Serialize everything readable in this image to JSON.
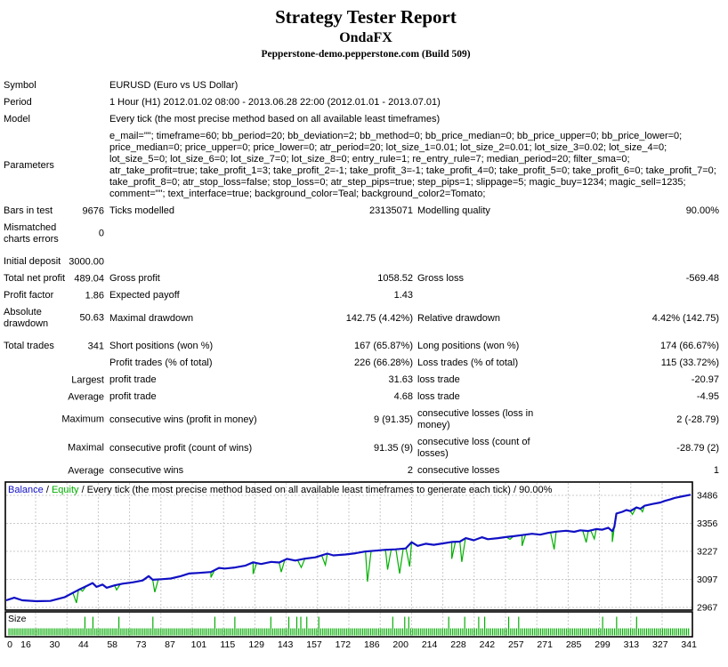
{
  "header": {
    "title": "Strategy Tester Report",
    "expert": "OndaFX",
    "server": "Pepperstone-demo.pepperstone.com (Build 509)"
  },
  "table": {
    "rows": [
      {
        "type": "info",
        "label": "Symbol",
        "value": "EURUSD (Euro vs US Dollar)"
      },
      {
        "type": "info",
        "label": "Period",
        "value": "1 Hour (H1) 2012.01.02 08:00 - 2013.06.28 22:00 (2012.01.01 - 2013.07.01)"
      },
      {
        "type": "info",
        "label": "Model",
        "value": "Every tick (the most precise method based on all available least timeframes)"
      },
      {
        "type": "info",
        "label": "Parameters",
        "value": "e_mail=\"\"; timeframe=60; bb_period=20; bb_deviation=2; bb_method=0; bb_price_median=0; bb_price_upper=0; bb_price_lower=0; price_median=0; price_upper=0; price_lower=0; atr_period=20; lot_size_1=0.01; lot_size_2=0.01; lot_size_3=0.02; lot_size_4=0; lot_size_5=0; lot_size_6=0; lot_size_7=0; lot_size_8=0; entry_rule=1; re_entry_rule=7; median_period=20; filter_sma=0; atr_take_profit=true; take_profit_1=3; take_profit_2=-1; take_profit_3=-1; take_profit_4=0; take_profit_5=0; take_profit_6=0; take_profit_7=0; take_profit_8=0; atr_stop_loss=false; stop_loss=0; atr_step_pips=true; step_pips=1; slippage=5; magic_buy=1234; magic_sell=1235; comment=\"\"; text_interface=true; background_color=Teal; background_color2=Tomato;"
      },
      {
        "type": "stats",
        "cells": [
          "Bars in test",
          "9676",
          "Ticks modelled",
          "23135071",
          "Modelling quality",
          "90.00%"
        ]
      },
      {
        "type": "stats",
        "cells": [
          "Mismatched charts errors",
          "0",
          "",
          "",
          "",
          ""
        ]
      },
      {
        "type": "gap"
      },
      {
        "type": "stats",
        "cells": [
          "Initial deposit",
          "3000.00",
          "",
          "",
          "",
          ""
        ]
      },
      {
        "type": "stats",
        "cells": [
          "Total net profit",
          "489.04",
          "Gross profit",
          "1058.52",
          "Gross loss",
          "-569.48"
        ]
      },
      {
        "type": "stats",
        "cells": [
          "Profit factor",
          "1.86",
          "Expected payoff",
          "1.43",
          "",
          ""
        ]
      },
      {
        "type": "stats",
        "cells": [
          "Absolute drawdown",
          "50.63",
          "Maximal drawdown",
          "142.75 (4.42%)",
          "Relative drawdown",
          "4.42% (142.75)"
        ]
      },
      {
        "type": "gap"
      },
      {
        "type": "stats",
        "cells": [
          "Total trades",
          "341",
          "Short positions (won %)",
          "167 (65.87%)",
          "Long positions (won %)",
          "174 (66.67%)"
        ]
      },
      {
        "type": "stats",
        "cells": [
          "",
          "",
          "Profit trades (% of total)",
          "226 (66.28%)",
          "Loss trades (% of total)",
          "115 (33.72%)"
        ]
      },
      {
        "type": "stats",
        "cells": [
          "",
          "Largest",
          "profit trade",
          "31.63",
          "loss trade",
          "-20.97"
        ]
      },
      {
        "type": "stats",
        "cells": [
          "",
          "Average",
          "profit trade",
          "4.68",
          "loss trade",
          "-4.95"
        ]
      },
      {
        "type": "stats",
        "cells": [
          "",
          "Maximum",
          "consecutive wins (profit in money)",
          "9 (91.35)",
          "consecutive losses (loss in money)",
          "2 (-28.79)"
        ]
      },
      {
        "type": "stats",
        "cells": [
          "",
          "Maximal",
          "consecutive profit (count of wins)",
          "91.35 (9)",
          "consecutive loss (count of losses)",
          "-28.79 (2)"
        ]
      },
      {
        "type": "stats",
        "cells": [
          "",
          "Average",
          "consecutive wins",
          "2",
          "consecutive losses",
          "1"
        ]
      }
    ]
  },
  "chart_data": {
    "type": "line",
    "legend": {
      "balance_label": "Balance",
      "equity_label": "Equity",
      "separator": " / ",
      "model_note": "Every tick (the most precise method based on all available least timeframes to generate each tick)",
      "quality": "90.00%"
    },
    "y_ticks": [
      3486,
      3356,
      3227,
      3097,
      2967
    ],
    "x_ticks": [
      0,
      16,
      30,
      44,
      58,
      73,
      87,
      101,
      115,
      129,
      143,
      157,
      172,
      186,
      200,
      214,
      228,
      242,
      257,
      271,
      285,
      299,
      313,
      327,
      341
    ],
    "x_range": [
      0,
      341
    ],
    "initial_deposit": 3000,
    "final_balance": 3489.04,
    "colors": {
      "balance": "#1010c4",
      "equity": "#00b000",
      "grid": "#c9c9c9",
      "border": "#000000",
      "bars": "#00aa00"
    },
    "series": [
      {
        "name": "Balance",
        "points": [
          [
            0,
            3000
          ],
          [
            4,
            3012
          ],
          [
            8,
            3000
          ],
          [
            15,
            2996
          ],
          [
            22,
            2997
          ],
          [
            29,
            3014
          ],
          [
            36,
            3048
          ],
          [
            40,
            3066
          ],
          [
            43,
            3080
          ],
          [
            45,
            3062
          ],
          [
            48,
            3073
          ],
          [
            50,
            3058
          ],
          [
            54,
            3069
          ],
          [
            58,
            3077
          ],
          [
            63,
            3083
          ],
          [
            68,
            3092
          ],
          [
            71,
            3112
          ],
          [
            73,
            3095
          ],
          [
            78,
            3098
          ],
          [
            82,
            3101
          ],
          [
            87,
            3112
          ],
          [
            91,
            3124
          ],
          [
            96,
            3127
          ],
          [
            102,
            3131
          ],
          [
            106,
            3150
          ],
          [
            109,
            3147
          ],
          [
            114,
            3152
          ],
          [
            119,
            3160
          ],
          [
            123,
            3176
          ],
          [
            127,
            3168
          ],
          [
            132,
            3178
          ],
          [
            136,
            3175
          ],
          [
            140,
            3192
          ],
          [
            144,
            3184
          ],
          [
            149,
            3193
          ],
          [
            154,
            3199
          ],
          [
            160,
            3216
          ],
          [
            163,
            3208
          ],
          [
            169,
            3212
          ],
          [
            174,
            3218
          ],
          [
            179,
            3226
          ],
          [
            184,
            3230
          ],
          [
            189,
            3234
          ],
          [
            194,
            3236
          ],
          [
            199,
            3240
          ],
          [
            202,
            3269
          ],
          [
            205,
            3252
          ],
          [
            209,
            3262
          ],
          [
            213,
            3257
          ],
          [
            218,
            3264
          ],
          [
            222,
            3270
          ],
          [
            226,
            3272
          ],
          [
            229,
            3288
          ],
          [
            233,
            3278
          ],
          [
            237,
            3292
          ],
          [
            240,
            3283
          ],
          [
            245,
            3288
          ],
          [
            249,
            3293
          ],
          [
            253,
            3297
          ],
          [
            257,
            3302
          ],
          [
            262,
            3308
          ],
          [
            266,
            3304
          ],
          [
            270,
            3312
          ],
          [
            274,
            3318
          ],
          [
            279,
            3322
          ],
          [
            283,
            3317
          ],
          [
            286,
            3324
          ],
          [
            290,
            3321
          ],
          [
            294,
            3330
          ],
          [
            297,
            3327
          ],
          [
            300,
            3336
          ],
          [
            302,
            3320
          ],
          [
            303,
            3340
          ],
          [
            304,
            3402
          ],
          [
            307,
            3410
          ],
          [
            309,
            3418
          ],
          [
            311,
            3413
          ],
          [
            314,
            3430
          ],
          [
            316,
            3424
          ],
          [
            318,
            3438
          ],
          [
            322,
            3446
          ],
          [
            326,
            3453
          ],
          [
            328,
            3460
          ],
          [
            331,
            3468
          ],
          [
            333,
            3474
          ],
          [
            336,
            3480
          ],
          [
            341,
            3489
          ]
        ]
      },
      {
        "name": "Equity",
        "dips": [
          [
            35,
            2988
          ],
          [
            38,
            3042
          ],
          [
            55,
            3048
          ],
          [
            74,
            3038
          ],
          [
            102,
            3106
          ],
          [
            123,
            3122
          ],
          [
            137,
            3131
          ],
          [
            147,
            3152
          ],
          [
            159,
            3163
          ],
          [
            180,
            3086
          ],
          [
            190,
            3142
          ],
          [
            196,
            3124
          ],
          [
            201,
            3156
          ],
          [
            222,
            3192
          ],
          [
            227,
            3178
          ],
          [
            251,
            3282
          ],
          [
            257,
            3252
          ],
          [
            273,
            3236
          ],
          [
            289,
            3268
          ],
          [
            293,
            3284
          ],
          [
            302,
            3270
          ],
          [
            312,
            3398
          ],
          [
            317,
            3410
          ]
        ]
      }
    ],
    "size_panel": {
      "label": "Size",
      "trade_count": 341,
      "tall_bar_trades": [
        38,
        42,
        55,
        72,
        103,
        113,
        131,
        140,
        144,
        146,
        149,
        155,
        192,
        198,
        200,
        220,
        228,
        235,
        238,
        250,
        255,
        297,
        304,
        314
      ]
    }
  }
}
